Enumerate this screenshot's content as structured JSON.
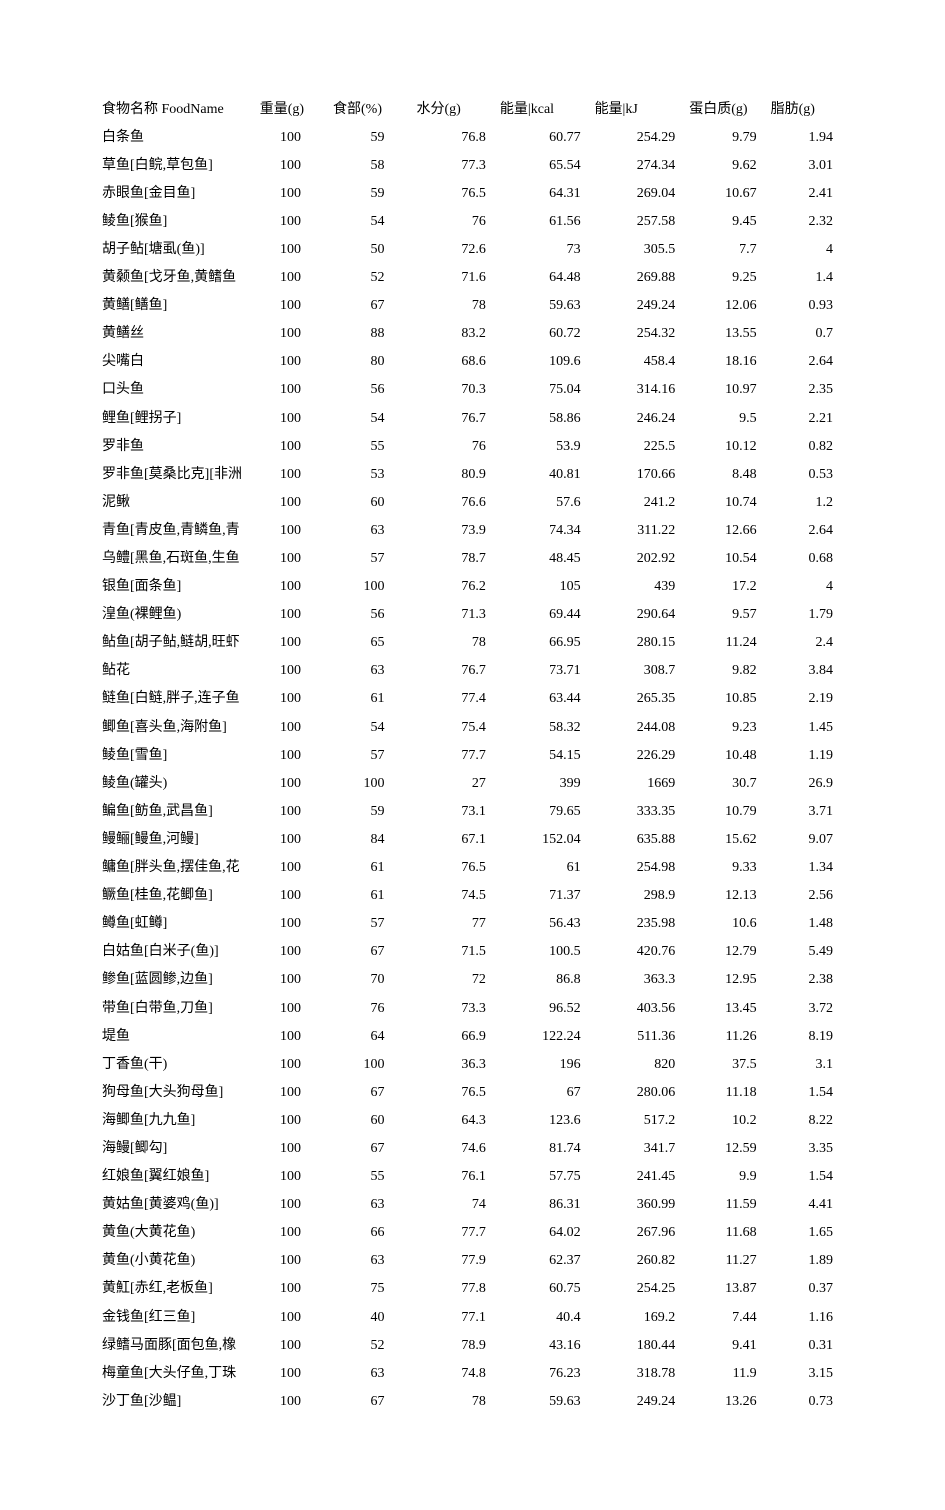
{
  "table": {
    "background_color": "#ffffff",
    "text_color": "#000000",
    "font_family": "SimSun",
    "font_size_pt": 10,
    "columns": [
      {
        "key": "name",
        "label": "食物名称 FoodName",
        "class": "col-name"
      },
      {
        "key": "weight",
        "label": "重量(g)",
        "class": "col-weight"
      },
      {
        "key": "edible",
        "label": "食部(%)",
        "class": "col-edible"
      },
      {
        "key": "water",
        "label": "水分(g)",
        "class": "col-water"
      },
      {
        "key": "kcal",
        "label": "能量|kcal",
        "class": "col-kcal"
      },
      {
        "key": "kj",
        "label": "能量|kJ",
        "class": "col-kj"
      },
      {
        "key": "protein",
        "label": "蛋白质(g)",
        "class": "col-protein"
      },
      {
        "key": "fat",
        "label": "脂肪(g)",
        "class": "col-fat"
      }
    ],
    "rows": [
      {
        "name": "白条鱼",
        "weight": "100",
        "edible": "59",
        "water": "76.8",
        "kcal": "60.77",
        "kj": "254.29",
        "protein": "9.79",
        "fat": "1.94"
      },
      {
        "name": "草鱼[白鲩,草包鱼]",
        "weight": "100",
        "edible": "58",
        "water": "77.3",
        "kcal": "65.54",
        "kj": "274.34",
        "protein": "9.62",
        "fat": "3.01"
      },
      {
        "name": "赤眼鱼[金目鱼]",
        "weight": "100",
        "edible": "59",
        "water": "76.5",
        "kcal": "64.31",
        "kj": "269.04",
        "protein": "10.67",
        "fat": "2.41"
      },
      {
        "name": "鲮鱼[猴鱼]",
        "weight": "100",
        "edible": "54",
        "water": "76",
        "kcal": "61.56",
        "kj": "257.58",
        "protein": "9.45",
        "fat": "2.32"
      },
      {
        "name": "胡子鲇[塘虱(鱼)]",
        "weight": "100",
        "edible": "50",
        "water": "72.6",
        "kcal": "73",
        "kj": "305.5",
        "protein": "7.7",
        "fat": "4"
      },
      {
        "name": "黄颡鱼[戈牙鱼,黄鳍鱼",
        "weight": "100",
        "edible": "52",
        "water": "71.6",
        "kcal": "64.48",
        "kj": "269.88",
        "protein": "9.25",
        "fat": "1.4"
      },
      {
        "name": "黄鳝[鳝鱼]",
        "weight": "100",
        "edible": "67",
        "water": "78",
        "kcal": "59.63",
        "kj": "249.24",
        "protein": "12.06",
        "fat": "0.93"
      },
      {
        "name": "黄鳝丝",
        "weight": "100",
        "edible": "88",
        "water": "83.2",
        "kcal": "60.72",
        "kj": "254.32",
        "protein": "13.55",
        "fat": "0.7"
      },
      {
        "name": "尖嘴白",
        "weight": "100",
        "edible": "80",
        "water": "68.6",
        "kcal": "109.6",
        "kj": "458.4",
        "protein": "18.16",
        "fat": "2.64"
      },
      {
        "name": "口头鱼",
        "weight": "100",
        "edible": "56",
        "water": "70.3",
        "kcal": "75.04",
        "kj": "314.16",
        "protein": "10.97",
        "fat": "2.35"
      },
      {
        "name": "鲤鱼[鲤拐子]",
        "weight": "100",
        "edible": "54",
        "water": "76.7",
        "kcal": "58.86",
        "kj": "246.24",
        "protein": "9.5",
        "fat": "2.21"
      },
      {
        "name": "罗非鱼",
        "weight": "100",
        "edible": "55",
        "water": "76",
        "kcal": "53.9",
        "kj": "225.5",
        "protein": "10.12",
        "fat": "0.82"
      },
      {
        "name": "罗非鱼[莫桑比克][非洲",
        "weight": "100",
        "edible": "53",
        "water": "80.9",
        "kcal": "40.81",
        "kj": "170.66",
        "protein": "8.48",
        "fat": "0.53"
      },
      {
        "name": "泥鳅",
        "weight": "100",
        "edible": "60",
        "water": "76.6",
        "kcal": "57.6",
        "kj": "241.2",
        "protein": "10.74",
        "fat": "1.2"
      },
      {
        "name": "青鱼[青皮鱼,青鳞鱼,青",
        "weight": "100",
        "edible": "63",
        "water": "73.9",
        "kcal": "74.34",
        "kj": "311.22",
        "protein": "12.66",
        "fat": "2.64"
      },
      {
        "name": "乌鳢[黑鱼,石斑鱼,生鱼",
        "weight": "100",
        "edible": "57",
        "water": "78.7",
        "kcal": "48.45",
        "kj": "202.92",
        "protein": "10.54",
        "fat": "0.68"
      },
      {
        "name": "银鱼[面条鱼]",
        "weight": "100",
        "edible": "100",
        "water": "76.2",
        "kcal": "105",
        "kj": "439",
        "protein": "17.2",
        "fat": "4"
      },
      {
        "name": "湟鱼(裸鲤鱼)",
        "weight": "100",
        "edible": "56",
        "water": "71.3",
        "kcal": "69.44",
        "kj": "290.64",
        "protein": "9.57",
        "fat": "1.79"
      },
      {
        "name": "鲇鱼[胡子鲇,鲢胡,旺虾",
        "weight": "100",
        "edible": "65",
        "water": "78",
        "kcal": "66.95",
        "kj": "280.15",
        "protein": "11.24",
        "fat": "2.4"
      },
      {
        "name": "鲇花",
        "weight": "100",
        "edible": "63",
        "water": "76.7",
        "kcal": "73.71",
        "kj": "308.7",
        "protein": "9.82",
        "fat": "3.84"
      },
      {
        "name": "鲢鱼[白鲢,胖子,连子鱼",
        "weight": "100",
        "edible": "61",
        "water": "77.4",
        "kcal": "63.44",
        "kj": "265.35",
        "protein": "10.85",
        "fat": "2.19"
      },
      {
        "name": "鲫鱼[喜头鱼,海附鱼]",
        "weight": "100",
        "edible": "54",
        "water": "75.4",
        "kcal": "58.32",
        "kj": "244.08",
        "protein": "9.23",
        "fat": "1.45"
      },
      {
        "name": "鲮鱼[雪鱼]",
        "weight": "100",
        "edible": "57",
        "water": "77.7",
        "kcal": "54.15",
        "kj": "226.29",
        "protein": "10.48",
        "fat": "1.19"
      },
      {
        "name": "鲮鱼(罐头)",
        "weight": "100",
        "edible": "100",
        "water": "27",
        "kcal": "399",
        "kj": "1669",
        "protein": "30.7",
        "fat": "26.9"
      },
      {
        "name": "鳊鱼[鲂鱼,武昌鱼]",
        "weight": "100",
        "edible": "59",
        "water": "73.1",
        "kcal": "79.65",
        "kj": "333.35",
        "protein": "10.79",
        "fat": "3.71"
      },
      {
        "name": "鳗鲡[鳗鱼,河鳗]",
        "weight": "100",
        "edible": "84",
        "water": "67.1",
        "kcal": "152.04",
        "kj": "635.88",
        "protein": "15.62",
        "fat": "9.07"
      },
      {
        "name": "鳙鱼[胖头鱼,摆佳鱼,花",
        "weight": "100",
        "edible": "61",
        "water": "76.5",
        "kcal": "61",
        "kj": "254.98",
        "protein": "9.33",
        "fat": "1.34"
      },
      {
        "name": "鳜鱼[桂鱼,花鲫鱼]",
        "weight": "100",
        "edible": "61",
        "water": "74.5",
        "kcal": "71.37",
        "kj": "298.9",
        "protein": "12.13",
        "fat": "2.56"
      },
      {
        "name": "鳟鱼[虹鳟]",
        "weight": "100",
        "edible": "57",
        "water": "77",
        "kcal": "56.43",
        "kj": "235.98",
        "protein": "10.6",
        "fat": "1.48"
      },
      {
        "name": "白姑鱼[白米子(鱼)]",
        "weight": "100",
        "edible": "67",
        "water": "71.5",
        "kcal": "100.5",
        "kj": "420.76",
        "protein": "12.79",
        "fat": "5.49"
      },
      {
        "name": "鲹鱼[蓝圆鲹,边鱼]",
        "weight": "100",
        "edible": "70",
        "water": "72",
        "kcal": "86.8",
        "kj": "363.3",
        "protein": "12.95",
        "fat": "2.38"
      },
      {
        "name": "带鱼[白带鱼,刀鱼]",
        "weight": "100",
        "edible": "76",
        "water": "73.3",
        "kcal": "96.52",
        "kj": "403.56",
        "protein": "13.45",
        "fat": "3.72"
      },
      {
        "name": "堤鱼",
        "weight": "100",
        "edible": "64",
        "water": "66.9",
        "kcal": "122.24",
        "kj": "511.36",
        "protein": "11.26",
        "fat": "8.19"
      },
      {
        "name": "丁香鱼(干)",
        "weight": "100",
        "edible": "100",
        "water": "36.3",
        "kcal": "196",
        "kj": "820",
        "protein": "37.5",
        "fat": "3.1"
      },
      {
        "name": "狗母鱼[大头狗母鱼]",
        "weight": "100",
        "edible": "67",
        "water": "76.5",
        "kcal": "67",
        "kj": "280.06",
        "protein": "11.18",
        "fat": "1.54"
      },
      {
        "name": "海鲫鱼[九九鱼]",
        "weight": "100",
        "edible": "60",
        "water": "64.3",
        "kcal": "123.6",
        "kj": "517.2",
        "protein": "10.2",
        "fat": "8.22"
      },
      {
        "name": "海鳗[鲫勾]",
        "weight": "100",
        "edible": "67",
        "water": "74.6",
        "kcal": "81.74",
        "kj": "341.7",
        "protein": "12.59",
        "fat": "3.35"
      },
      {
        "name": "红娘鱼[翼红娘鱼]",
        "weight": "100",
        "edible": "55",
        "water": "76.1",
        "kcal": "57.75",
        "kj": "241.45",
        "protein": "9.9",
        "fat": "1.54"
      },
      {
        "name": "黄姑鱼[黄婆鸡(鱼)]",
        "weight": "100",
        "edible": "63",
        "water": "74",
        "kcal": "86.31",
        "kj": "360.99",
        "protein": "11.59",
        "fat": "4.41"
      },
      {
        "name": "黄鱼(大黄花鱼)",
        "weight": "100",
        "edible": "66",
        "water": "77.7",
        "kcal": "64.02",
        "kj": "267.96",
        "protein": "11.68",
        "fat": "1.65"
      },
      {
        "name": "黄鱼(小黄花鱼)",
        "weight": "100",
        "edible": "63",
        "water": "77.9",
        "kcal": "62.37",
        "kj": "260.82",
        "protein": "11.27",
        "fat": "1.89"
      },
      {
        "name": "黄魟[赤红,老板鱼]",
        "weight": "100",
        "edible": "75",
        "water": "77.8",
        "kcal": "60.75",
        "kj": "254.25",
        "protein": "13.87",
        "fat": "0.37"
      },
      {
        "name": "金钱鱼[红三鱼]",
        "weight": "100",
        "edible": "40",
        "water": "77.1",
        "kcal": "40.4",
        "kj": "169.2",
        "protein": "7.44",
        "fat": "1.16"
      },
      {
        "name": "绿鳍马面豚[面包鱼,橡",
        "weight": "100",
        "edible": "52",
        "water": "78.9",
        "kcal": "43.16",
        "kj": "180.44",
        "protein": "9.41",
        "fat": "0.31"
      },
      {
        "name": "梅童鱼[大头仔鱼,丁珠",
        "weight": "100",
        "edible": "63",
        "water": "74.8",
        "kcal": "76.23",
        "kj": "318.78",
        "protein": "11.9",
        "fat": "3.15"
      },
      {
        "name": "沙丁鱼[沙鳁]",
        "weight": "100",
        "edible": "67",
        "water": "78",
        "kcal": "59.63",
        "kj": "249.24",
        "protein": "13.26",
        "fat": "0.73"
      }
    ]
  }
}
